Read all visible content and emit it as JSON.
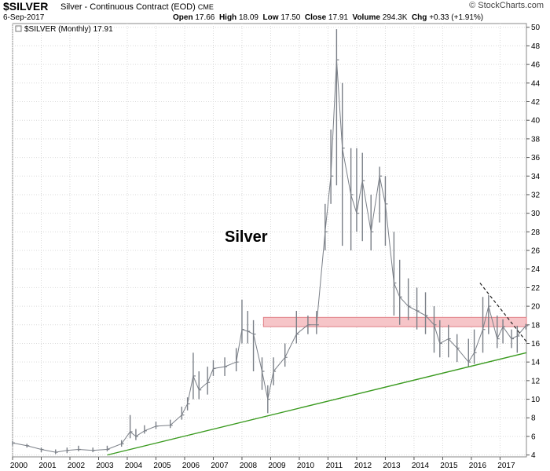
{
  "header": {
    "symbol": "$SILVER",
    "description": "Silver - Continuous Contract (EOD)",
    "exchange": "CME",
    "date": "6-Sep-2017",
    "open_label": "Open",
    "open": "17.66",
    "high_label": "High",
    "high": "18.09",
    "low_label": "Low",
    "low": "17.50",
    "close_label": "Close",
    "close": "17.91",
    "volume_label": "Volume",
    "volume": "294.3K",
    "chg_label": "Chg",
    "chg": "+0.33 (+1.91%)",
    "brand": "© StockCharts.com"
  },
  "chart_data": {
    "type": "line",
    "legend": "$SILVER (Monthly) 17.91",
    "legend_position": "top-left",
    "annotation": "Silver",
    "x_range": [
      2000.0,
      2017.92
    ],
    "ylim": [
      3.8,
      50.4
    ],
    "y_axis_side": "right",
    "grid": true,
    "x_tick_labels": [
      "2000",
      "2001",
      "2002",
      "2003",
      "2004",
      "2005",
      "2006",
      "2007",
      "2008",
      "2009",
      "2010",
      "2011",
      "2012",
      "2013",
      "2014",
      "2015",
      "2016",
      "2017"
    ],
    "y_ticks": [
      4,
      6,
      8,
      10,
      12,
      14,
      16,
      18,
      20,
      22,
      24,
      26,
      28,
      30,
      32,
      34,
      36,
      38,
      40,
      42,
      44,
      46,
      48,
      50
    ],
    "x": [
      2000.0,
      2000.5,
      2001.0,
      2001.5,
      2001.9,
      2002.3,
      2002.8,
      2003.3,
      2003.8,
      2004.1,
      2004.3,
      2004.6,
      2005.0,
      2005.5,
      2005.9,
      2006.1,
      2006.3,
      2006.5,
      2006.8,
      2007.0,
      2007.4,
      2007.8,
      2008.0,
      2008.2,
      2008.4,
      2008.7,
      2008.9,
      2009.1,
      2009.5,
      2009.9,
      2010.3,
      2010.6,
      2010.9,
      2011.1,
      2011.3,
      2011.5,
      2011.8,
      2012.0,
      2012.2,
      2012.5,
      2012.8,
      2013.0,
      2013.3,
      2013.5,
      2013.8,
      2014.1,
      2014.4,
      2014.7,
      2014.9,
      2015.2,
      2015.5,
      2015.9,
      2016.1,
      2016.4,
      2016.6,
      2016.9,
      2017.1,
      2017.4,
      2017.6,
      2017.9
    ],
    "series": [
      {
        "values": [
          5.3,
          5.0,
          4.6,
          4.3,
          4.5,
          4.6,
          4.5,
          4.6,
          5.2,
          6.5,
          6.0,
          6.6,
          7.1,
          7.2,
          8.3,
          9.5,
          12.5,
          11.0,
          11.8,
          13.3,
          13.5,
          14.0,
          17.5,
          17.3,
          17.0,
          13.0,
          10.0,
          13.0,
          14.5,
          17.0,
          18.0,
          18.0,
          28.0,
          34.0,
          46.5,
          37.0,
          32.0,
          30.0,
          33.5,
          28.0,
          34.0,
          31.0,
          22.5,
          21.0,
          20.0,
          19.5,
          19.0,
          18.0,
          16.0,
          16.5,
          15.5,
          14.0,
          15.0,
          17.5,
          20.0,
          16.5,
          17.8,
          16.5,
          16.8,
          17.9
        ],
        "high": [
          5.5,
          5.2,
          4.8,
          4.6,
          4.8,
          5.0,
          4.8,
          5.0,
          5.6,
          8.3,
          6.8,
          7.2,
          7.6,
          7.8,
          9.2,
          10.2,
          15.0,
          13.0,
          13.5,
          14.2,
          14.5,
          15.5,
          20.7,
          19.5,
          18.5,
          14.5,
          11.5,
          14.5,
          16.0,
          19.5,
          19.0,
          19.5,
          31.0,
          39.0,
          49.8,
          44.0,
          37.0,
          37.0,
          36.5,
          32.0,
          35.0,
          34.0,
          28.0,
          25.0,
          23.0,
          22.0,
          21.5,
          20.0,
          18.5,
          18.0,
          17.0,
          16.5,
          17.5,
          21.0,
          21.2,
          19.0,
          18.6,
          17.5,
          17.9,
          18.1
        ],
        "low": [
          5.0,
          4.8,
          4.3,
          4.1,
          4.2,
          4.4,
          4.3,
          4.4,
          4.9,
          5.8,
          5.6,
          6.3,
          6.8,
          6.9,
          7.8,
          8.8,
          10.0,
          10.0,
          10.5,
          12.5,
          12.5,
          13.0,
          16.0,
          16.0,
          13.0,
          11.0,
          8.5,
          11.5,
          13.5,
          16.0,
          17.0,
          17.0,
          26.0,
          31.0,
          33.0,
          26.5,
          26.0,
          28.0,
          27.0,
          26.0,
          29.0,
          26.5,
          19.0,
          18.0,
          18.5,
          17.5,
          17.0,
          15.0,
          14.5,
          14.5,
          14.0,
          13.5,
          13.8,
          15.0,
          17.0,
          15.5,
          16.0,
          15.5,
          15.0,
          17.5
        ]
      }
    ],
    "support_line": {
      "x": [
        2003.3,
        2017.92
      ],
      "y": [
        4.0,
        15.0
      ],
      "color": "#3a9a1f"
    },
    "downtrend_line": {
      "x": [
        2016.3,
        2017.92
      ],
      "y": [
        22.5,
        16.2
      ],
      "color": "#222222",
      "style": "dashed"
    },
    "resistance_zone": {
      "x": [
        2008.75,
        2017.92
      ],
      "y": [
        17.8,
        18.8
      ],
      "fill": "#f6c5c8",
      "stroke": "#e07f86"
    },
    "bar_color": "#7a7f87"
  }
}
